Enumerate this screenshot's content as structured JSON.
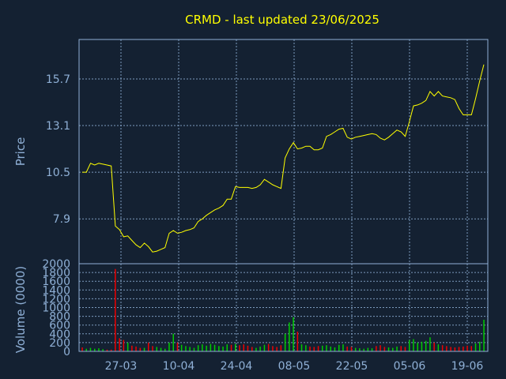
{
  "chart_data": {
    "type": "line",
    "title": "CRMD - last updated 23/06/2025",
    "colors": {
      "background": "#142132",
      "axis": "#8fb0d6",
      "price_line": "#ffff00",
      "volume_up": "#00cc00",
      "volume_down": "#ee0000",
      "title": "#ffff00"
    },
    "grid": true,
    "x_tick_labels": [
      "27-03",
      "10-04",
      "24-04",
      "08-05",
      "22-05",
      "05-06",
      "19-06"
    ],
    "price_panel": {
      "ylabel": "Price",
      "ylim": [
        5.4,
        17.9
      ],
      "y_ticks": [
        7.9,
        10.5,
        13.1,
        15.7
      ],
      "y_tick_labels": [
        "7.9",
        "10.5",
        "13.1",
        "15.7"
      ],
      "series": [
        {
          "values": [
            10.5,
            10.5,
            11.0,
            10.9,
            11.0,
            10.95,
            10.9,
            10.85,
            7.5,
            7.3,
            6.9,
            6.95,
            6.7,
            6.45,
            6.3,
            6.55,
            6.35,
            6.05,
            6.1,
            6.2,
            6.3,
            7.1,
            7.25,
            7.1,
            7.15,
            7.25,
            7.3,
            7.4,
            7.75,
            7.9,
            8.1,
            8.25,
            8.4,
            8.5,
            8.65,
            9.0,
            9.0,
            9.7,
            9.65,
            9.65,
            9.65,
            9.6,
            9.65,
            9.8,
            10.1,
            9.95,
            9.8,
            9.7,
            9.6,
            11.3,
            11.8,
            12.15,
            11.8,
            11.85,
            11.95,
            11.95,
            11.75,
            11.75,
            11.85,
            12.5,
            12.6,
            12.75,
            12.9,
            12.95,
            12.45,
            12.35,
            12.45,
            12.5,
            12.55,
            12.6,
            12.65,
            12.6,
            12.4,
            12.3,
            12.45,
            12.65,
            12.85,
            12.75,
            12.5,
            13.3,
            14.2,
            14.25,
            14.35,
            14.5,
            15.0,
            14.75,
            15.0,
            14.75,
            14.7,
            14.65,
            14.55,
            14.05,
            13.7,
            13.7,
            13.7,
            14.6,
            15.6,
            16.5
          ]
        }
      ]
    },
    "volume_panel": {
      "ylabel": "Volume (0000)",
      "ylim": [
        0,
        2000
      ],
      "y_ticks": [
        0,
        200,
        400,
        600,
        800,
        1000,
        1200,
        1400,
        1600,
        1800,
        2000
      ],
      "y_tick_labels": [
        "0",
        "200",
        "400",
        "600",
        "800",
        "1000",
        "1200",
        "1400",
        "1600",
        "1800",
        "2000"
      ],
      "values": [
        90,
        60,
        80,
        60,
        70,
        50,
        40,
        40,
        1880,
        300,
        260,
        200,
        130,
        110,
        80,
        80,
        200,
        120,
        100,
        80,
        60,
        200,
        400,
        200,
        150,
        120,
        100,
        80,
        140,
        160,
        130,
        170,
        150,
        120,
        110,
        160,
        150,
        170,
        140,
        160,
        130,
        100,
        80,
        110,
        150,
        170,
        120,
        100,
        140,
        400,
        660,
        780,
        450,
        160,
        140,
        110,
        100,
        120,
        130,
        140,
        110,
        90,
        150,
        160,
        110,
        100,
        80,
        70,
        60,
        80,
        70,
        120,
        140,
        100,
        90,
        80,
        110,
        120,
        100,
        260,
        280,
        200,
        220,
        240,
        320,
        200,
        160,
        140,
        120,
        100,
        90,
        100,
        110,
        130,
        120,
        180,
        220,
        720
      ],
      "direction": [
        "down",
        "up",
        "up",
        "up",
        "up",
        "up",
        "down",
        "down",
        "down",
        "down",
        "down",
        "up",
        "down",
        "down",
        "down",
        "up",
        "down",
        "down",
        "up",
        "up",
        "up",
        "up",
        "up",
        "down",
        "up",
        "up",
        "up",
        "up",
        "up",
        "up",
        "up",
        "up",
        "up",
        "up",
        "up",
        "up",
        "down",
        "up",
        "down",
        "down",
        "down",
        "down",
        "up",
        "up",
        "up",
        "down",
        "down",
        "down",
        "down",
        "up",
        "up",
        "up",
        "down",
        "up",
        "up",
        "down",
        "down",
        "down",
        "up",
        "up",
        "up",
        "up",
        "up",
        "up",
        "down",
        "down",
        "up",
        "up",
        "up",
        "up",
        "up",
        "down",
        "down",
        "down",
        "up",
        "up",
        "up",
        "down",
        "down",
        "up",
        "up",
        "up",
        "up",
        "up",
        "up",
        "down",
        "up",
        "down",
        "down",
        "down",
        "down",
        "down",
        "down",
        "down",
        "down",
        "up",
        "up",
        "up"
      ]
    }
  }
}
